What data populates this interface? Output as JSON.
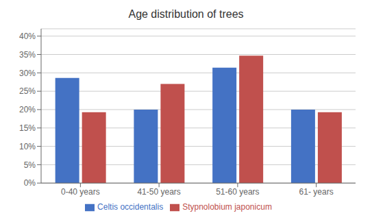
{
  "chart_data": {
    "type": "bar",
    "title": "Age distribution of trees",
    "categories": [
      "0-40 years",
      "41-50 years",
      "51-60 years",
      "61- years"
    ],
    "series": [
      {
        "name": "Celtis occidentalis",
        "color": "#4472C4",
        "values": [
          0.286,
          0.2,
          0.314,
          0.2
        ]
      },
      {
        "name": "Stypnolobium japonicum",
        "color": "#C0504D",
        "values": [
          0.193,
          0.27,
          0.347,
          0.193
        ]
      }
    ],
    "ylim": [
      0,
      0.42
    ],
    "yticks": [
      {
        "value": 0.0,
        "label": "0%"
      },
      {
        "value": 0.05,
        "label": "5%"
      },
      {
        "value": 0.1,
        "label": "10%"
      },
      {
        "value": 0.15,
        "label": "15%"
      },
      {
        "value": 0.2,
        "label": "20%"
      },
      {
        "value": 0.25,
        "label": "25%"
      },
      {
        "value": 0.3,
        "label": "30%"
      },
      {
        "value": 0.35,
        "label": "35%"
      },
      {
        "value": 0.4,
        "label": "40%"
      }
    ],
    "grid": true,
    "legend": "bottom"
  }
}
